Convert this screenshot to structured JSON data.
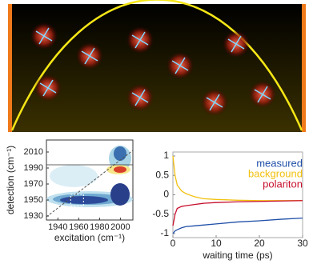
{
  "chart_data": [
    {
      "type": "contour",
      "xlabel": "excitation (cm⁻¹)",
      "ylabel": "detection (cm⁻¹)",
      "xlim": [
        1929,
        2012
      ],
      "ylim": [
        1925,
        2025
      ],
      "xticks": [
        1940,
        1960,
        1980,
        2000
      ],
      "yticks": [
        1930,
        1950,
        1970,
        1990,
        2010
      ]
    },
    {
      "type": "line",
      "xlabel": "waiting time (ps)",
      "x": [
        0,
        0.5,
        1,
        2,
        3,
        5,
        7,
        10,
        15,
        20,
        25,
        30
      ],
      "series": [
        {
          "name": "measured",
          "color": "#1f4fa8",
          "values": [
            -1,
            -0.93,
            -0.9,
            -0.85,
            -0.82,
            -0.8,
            -0.78,
            -0.75,
            -0.7,
            -0.67,
            -0.63,
            -0.6
          ]
        },
        {
          "name": "background",
          "color": "#f2c10f",
          "values": [
            1,
            0.5,
            0.25,
            0.1,
            0.03,
            -0.05,
            -0.1,
            -0.12,
            -0.14,
            -0.15,
            -0.15,
            -0.15
          ]
        },
        {
          "name": "polariton",
          "color": "#c8102e",
          "values": [
            -0.8,
            -0.5,
            -0.35,
            -0.3,
            -0.28,
            -0.25,
            -0.22,
            -0.2,
            -0.18,
            -0.17,
            -0.16,
            -0.15
          ]
        }
      ],
      "xlim": [
        0,
        30
      ],
      "ylim": [
        -1,
        1
      ],
      "xticks": [
        0,
        10,
        20,
        30
      ],
      "yticks": [
        -1,
        -0.5,
        0,
        0.5,
        1
      ]
    }
  ]
}
